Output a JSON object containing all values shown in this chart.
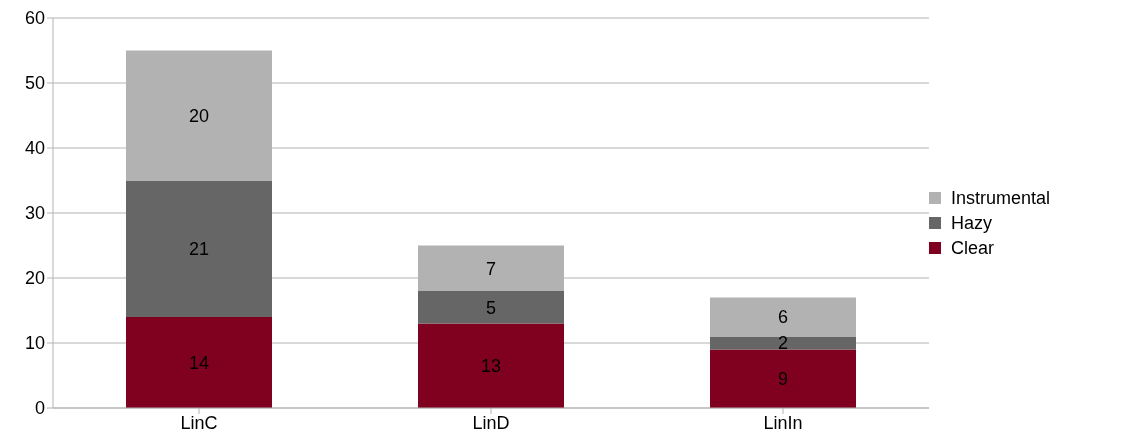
{
  "chart_data": {
    "type": "bar",
    "stacked": true,
    "categories": [
      "LinC",
      "LinD",
      "LinIn"
    ],
    "series": [
      {
        "name": "Clear",
        "color": "#800020",
        "values": [
          14,
          13,
          9
        ]
      },
      {
        "name": "Hazy",
        "color": "#666666",
        "values": [
          21,
          5,
          2
        ]
      },
      {
        "name": "Instrumental",
        "color": "#b2b2b2",
        "values": [
          20,
          7,
          6
        ]
      }
    ],
    "ylim": [
      0,
      60
    ],
    "yticks": [
      0,
      10,
      20,
      30,
      40,
      50,
      60
    ],
    "grid": "y",
    "legend": "right",
    "data_labels": true
  }
}
